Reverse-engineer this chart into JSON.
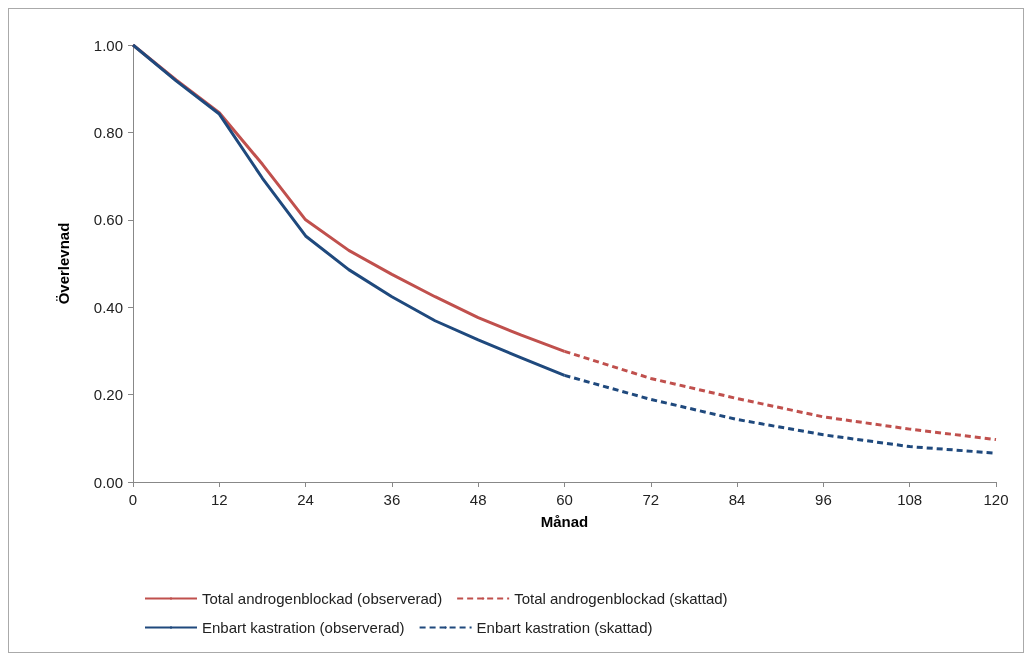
{
  "chart_data": {
    "type": "line",
    "xlabel": "Månad",
    "ylabel": "Överlevnad",
    "xlim": [
      0,
      120
    ],
    "xticks": [
      0,
      12,
      24,
      36,
      48,
      60,
      72,
      84,
      96,
      108,
      120
    ],
    "ylim": [
      0,
      1
    ],
    "yticks": [
      {
        "value": 0,
        "label": "0.00"
      },
      {
        "value": 0.2,
        "label": "0.20"
      },
      {
        "value": 0.4,
        "label": "0.40"
      },
      {
        "value": 0.6,
        "label": "0.60"
      },
      {
        "value": 0.8,
        "label": "0.80"
      },
      {
        "value": 1,
        "label": "1.00"
      }
    ],
    "grid": false,
    "legend": "bottom",
    "marker": "none",
    "series": [
      {
        "name": "Total androgenblockad (observerad)",
        "color": "#c0504d",
        "line_style": "solid",
        "x": [
          0,
          6,
          12,
          18,
          24,
          30,
          36,
          42,
          48,
          54,
          60
        ],
        "values": [
          1.0,
          0.92,
          0.845,
          0.727,
          0.6,
          0.53,
          0.475,
          0.424,
          0.376,
          0.336,
          0.299
        ]
      },
      {
        "name": "Total androgenblockad (skattad)",
        "color": "#c0504d",
        "line_style": "dashed",
        "x": [
          60,
          72,
          84,
          96,
          108,
          120
        ],
        "values": [
          0.299,
          0.237,
          0.191,
          0.149,
          0.121,
          0.097
        ]
      },
      {
        "name": "Enbart kastration (observerad)",
        "color": "#1f497d",
        "line_style": "solid",
        "x": [
          0,
          6,
          12,
          18,
          24,
          30,
          36,
          42,
          48,
          54,
          60
        ],
        "values": [
          1.0,
          0.918,
          0.842,
          0.695,
          0.563,
          0.486,
          0.424,
          0.369,
          0.325,
          0.284,
          0.244
        ]
      },
      {
        "name": "Enbart kastration (skattad)",
        "color": "#1f497d",
        "line_style": "dashed",
        "x": [
          60,
          72,
          84,
          96,
          108,
          120
        ],
        "values": [
          0.244,
          0.189,
          0.143,
          0.108,
          0.081,
          0.066
        ]
      }
    ]
  }
}
